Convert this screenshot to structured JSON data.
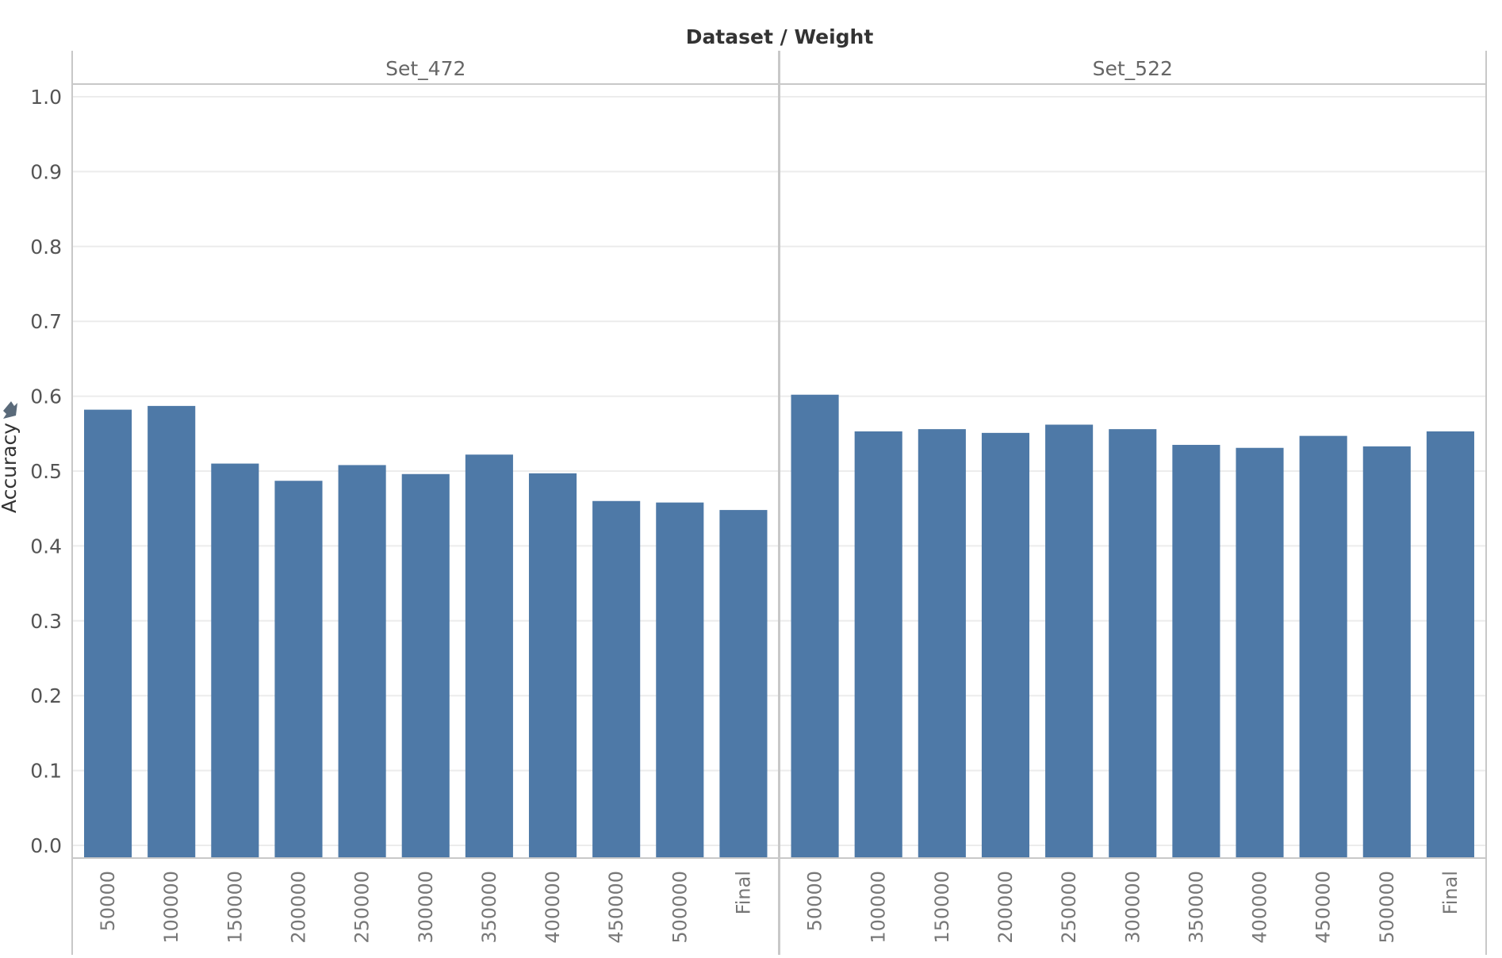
{
  "chart_data": {
    "type": "bar",
    "header_title": "Dataset / Weight",
    "ylabel": "Accuracy",
    "ylim": [
      0,
      1.0
    ],
    "yticks": [
      "0.0",
      "0.1",
      "0.2",
      "0.3",
      "0.4",
      "0.5",
      "0.6",
      "0.7",
      "0.8",
      "0.9",
      "1.0"
    ],
    "grid": true,
    "categories": [
      "50000",
      "100000",
      "150000",
      "200000",
      "250000",
      "300000",
      "350000",
      "400000",
      "450000",
      "500000",
      "Final"
    ],
    "panels": [
      {
        "name": "Set_472",
        "values": [
          0.582,
          0.587,
          0.51,
          0.487,
          0.508,
          0.496,
          0.522,
          0.497,
          0.46,
          0.458,
          0.448
        ]
      },
      {
        "name": "Set_522",
        "values": [
          0.602,
          0.553,
          0.556,
          0.551,
          0.562,
          0.556,
          0.535,
          0.531,
          0.547,
          0.533,
          0.553
        ]
      }
    ],
    "bar_color": "#4e79a7"
  }
}
